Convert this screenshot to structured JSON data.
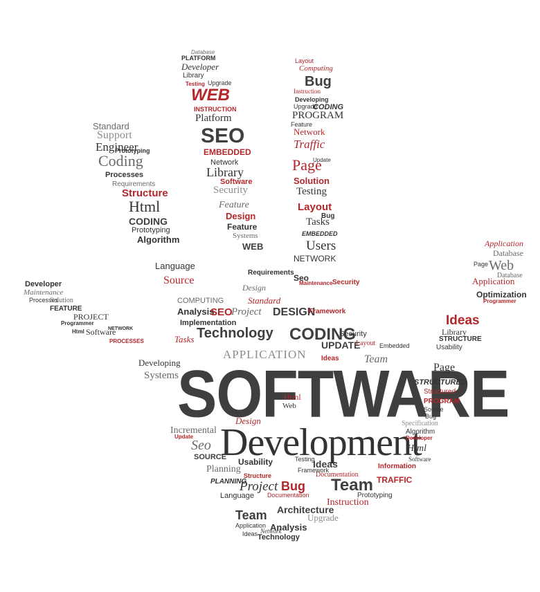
{
  "headline": {
    "primary": "SOFTWARE",
    "secondary": "Development"
  },
  "colors": {
    "background": "#ffffff",
    "dark": "#3f3f3f",
    "accent": "#b3262a",
    "grey": "#6a6a6a"
  },
  "words": {
    "thumb": [
      "Standard",
      "Support",
      "Engineer",
      "Prototyping",
      "Coding",
      "Processes",
      "Requirements",
      "Structure",
      "Html",
      "CODING",
      "Prototyping",
      "Algorithm",
      "Language",
      "Source",
      "Developer",
      "Maintenance",
      "Processes",
      "Solution",
      "FEATURE",
      "PROJECT",
      "Programmer",
      "Software",
      "Html",
      "NETWORK",
      "PROCESSES"
    ],
    "index_finger": [
      "Database",
      "PLATFORM",
      "Developer",
      "Library",
      "Testing",
      "Upgrade",
      "WEB",
      "INSTRUCTION",
      "Platform",
      "SEO",
      "EMBEDDED",
      "Network",
      "Library",
      "Software",
      "Security",
      "Feature",
      "Design",
      "Feature",
      "Systems",
      "WEB"
    ],
    "middle_finger": [
      "Layout",
      "Computing",
      "Bug",
      "Instruction",
      "Developing",
      "Upgrade",
      "CODING",
      "PROGRAM",
      "Feature",
      "Network",
      "Traffic",
      "Page",
      "Update",
      "Solution",
      "Testing",
      "Layout",
      "Tasks",
      "Bug",
      "EMBEDDED",
      "Users"
    ],
    "little_finger": [
      "Application",
      "Database",
      "Web",
      "Page",
      "Application",
      "Database",
      "Optimization",
      "Programmer",
      "Ideas",
      "Library",
      "STRUCTURE",
      "Usability"
    ],
    "palm": [
      "NETWORK",
      "Requirements",
      "Seo",
      "Maintenance",
      "Security",
      "Standard",
      "Design",
      "COMPUTING",
      "Analysis",
      "SEO",
      "Project",
      "DESIGN",
      "Framework",
      "Implementation",
      "Technology",
      "Tasks",
      "CODING",
      "Security",
      "UPDATE",
      "Layout",
      "APPLICATION",
      "Ideas",
      "Team",
      "Developing",
      "Systems",
      "Page",
      "STRUCTURED",
      "Structured",
      "PROGRAM",
      "Source",
      "Bug",
      "Html",
      "Web",
      "Incremental",
      "Seo",
      "Update",
      "SOURCE",
      "Design",
      "Specification",
      "Algorithm",
      "Developer",
      "Html",
      "Software",
      "Planning",
      "Usability",
      "Testing",
      "Ideas",
      "Information",
      "Structure",
      "Documentation",
      "Framework",
      "PLANNING",
      "Project",
      "Bug",
      "Team",
      "TRAFFIC",
      "Language",
      "Documentation",
      "Instruction",
      "Prototyping",
      "Architecture",
      "Team",
      "Upgrade",
      "Application",
      "Analysis",
      "Technology",
      "Ideas",
      "Network",
      "Embedded"
    ]
  }
}
